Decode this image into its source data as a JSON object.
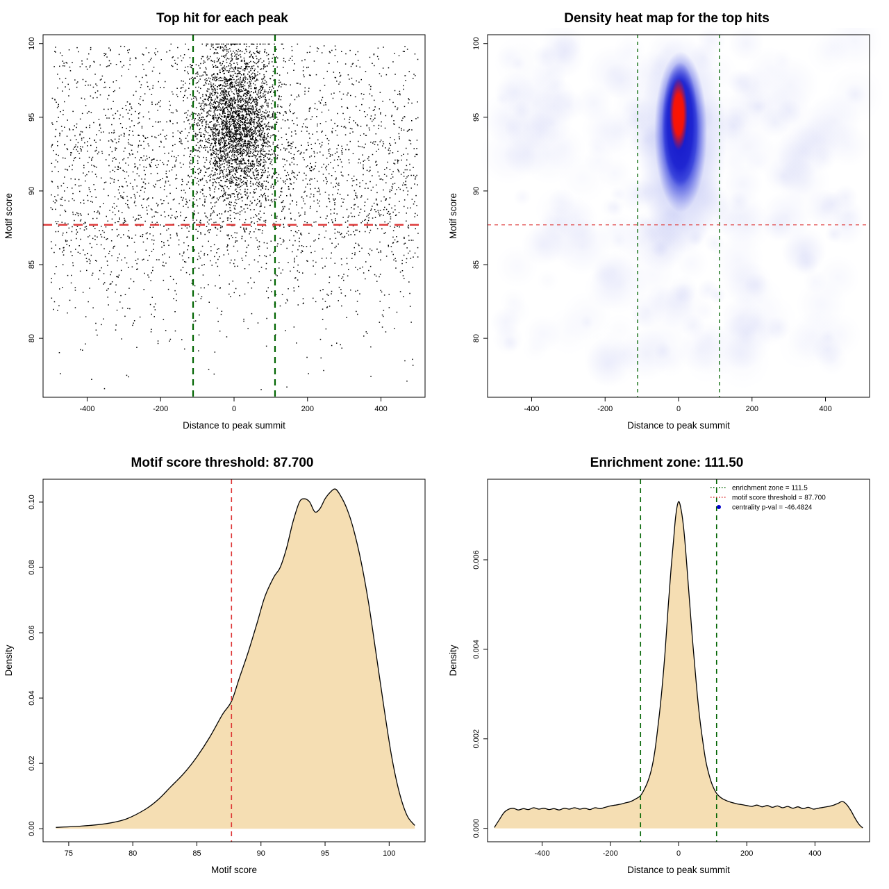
{
  "figure": {
    "background": "#ffffff"
  },
  "chart_data": [
    {
      "panel": "top-left",
      "type": "scatter",
      "title": "Top hit for each peak",
      "xlabel": "Distance to peak summit",
      "ylabel": "Motif score",
      "xlim": [
        -520,
        520
      ],
      "ylim": [
        76,
        100.6
      ],
      "xticks": [
        -400,
        -200,
        0,
        200,
        400
      ],
      "xtick_labels": [
        "-400",
        "-200",
        "0",
        "200",
        "400"
      ],
      "yticks": [
        80,
        85,
        90,
        95,
        100
      ],
      "ytick_labels": [
        "80",
        "85",
        "90",
        "95",
        "100"
      ],
      "point_color": "#000000",
      "n_points": 6000,
      "cluster": {
        "frac": 0.5,
        "x_mean": 5,
        "x_sd": 55,
        "y_mean": 94.6,
        "y_sd": 2.7,
        "y_cap": 100
      },
      "background_points": {
        "x_min": -500,
        "x_max": 500,
        "y_mean": 91,
        "y_sd": 5
      },
      "enrichment_zone": {
        "values": [
          -111.5,
          111.5
        ],
        "color": "#006400",
        "style": "dashed"
      },
      "score_threshold": {
        "value": 87.7,
        "color": "#dd3333",
        "style": "dashed"
      }
    },
    {
      "panel": "top-right",
      "type": "heatmap",
      "title": "Density heat map for the top hits",
      "xlabel": "Distance to peak summit",
      "ylabel": "Motif score",
      "xlim": [
        -520,
        520
      ],
      "ylim": [
        76,
        100.6
      ],
      "xticks": [
        -400,
        -200,
        0,
        200,
        400
      ],
      "xtick_labels": [
        "-400",
        "-200",
        "0",
        "200",
        "400"
      ],
      "yticks": [
        80,
        85,
        90,
        95,
        100
      ],
      "ytick_labels": [
        "80",
        "85",
        "90",
        "95",
        "100"
      ],
      "hotspot": {
        "x": 0,
        "y_center": 94.8,
        "y_span": [
          88,
          100
        ],
        "x_span": [
          -60,
          70
        ],
        "core_color": "#ff1400",
        "dense_color": "#1c22d0",
        "mid_color": "#2330d8",
        "glow_color": "#7d88ea",
        "noise_color": "#8891e8"
      },
      "enrichment_zone": {
        "values": [
          -111.5,
          111.5
        ],
        "color": "#006400",
        "style": "dashed"
      },
      "score_threshold": {
        "value": 87.7,
        "color": "#e04444",
        "style": "dashed"
      }
    },
    {
      "panel": "bottom-left",
      "type": "area",
      "title": "Motif score threshold: 87.700",
      "xlabel": "Motif score",
      "ylabel": "Density",
      "xlim": [
        73,
        102.8
      ],
      "ylim": [
        -0.004,
        0.107
      ],
      "xticks": [
        75,
        80,
        85,
        90,
        95,
        100
      ],
      "xtick_labels": [
        "75",
        "80",
        "85",
        "90",
        "95",
        "100"
      ],
      "yticks": [
        0,
        0.02,
        0.04,
        0.06,
        0.08,
        0.1
      ],
      "ytick_labels": [
        "0.00",
        "0.02",
        "0.04",
        "0.06",
        "0.08",
        "0.10"
      ],
      "fill": "#f5deb3",
      "line_color": "#000000",
      "threshold": {
        "value": 87.7,
        "color": "#dd3333",
        "style": "dashed"
      },
      "curve": {
        "x": [
          74,
          76,
          78,
          79.5,
          81,
          82,
          83,
          84,
          85,
          86,
          87,
          87.7,
          88.3,
          89,
          89.7,
          90.3,
          91,
          91.5,
          92,
          92.5,
          93,
          93.4,
          93.8,
          94.2,
          94.6,
          95,
          95.4,
          95.8,
          96.2,
          96.7,
          97.2,
          97.8,
          98.4,
          99,
          99.6,
          100.2,
          100.8,
          101.4,
          102
        ],
        "y": [
          0.0004,
          0.0008,
          0.0016,
          0.003,
          0.006,
          0.009,
          0.013,
          0.017,
          0.022,
          0.028,
          0.035,
          0.039,
          0.046,
          0.054,
          0.063,
          0.071,
          0.077,
          0.08,
          0.086,
          0.094,
          0.1,
          0.101,
          0.1,
          0.097,
          0.098,
          0.101,
          0.103,
          0.104,
          0.102,
          0.098,
          0.092,
          0.082,
          0.069,
          0.053,
          0.037,
          0.022,
          0.011,
          0.004,
          0.001
        ]
      }
    },
    {
      "panel": "bottom-right",
      "type": "area",
      "title": "Enrichment zone: 111.50",
      "xlabel": "Distance to peak summit",
      "ylabel": "Density",
      "xlim": [
        -560,
        560
      ],
      "ylim": [
        -0.0003,
        0.0078
      ],
      "xticks": [
        -400,
        -200,
        0,
        200,
        400
      ],
      "xtick_labels": [
        "-400",
        "-200",
        "0",
        "200",
        "400"
      ],
      "yticks": [
        0,
        0.002,
        0.004,
        0.006
      ],
      "ytick_labels": [
        "0.000",
        "0.002",
        "0.004",
        "0.006"
      ],
      "fill": "#f5deb3",
      "line_color": "#000000",
      "enrichment_zone": {
        "values": [
          -111.5,
          111.5
        ],
        "color": "#006400",
        "style": "dashed"
      },
      "legend": [
        {
          "label": "enrichment zone = 111.5",
          "color": "#006400",
          "marker": "line"
        },
        {
          "label": "motif score threshold = 87.700",
          "color": "#dd3333",
          "marker": "line"
        },
        {
          "label": "centrality p-val = -46.4824",
          "color": "#0000cc",
          "marker": "point"
        }
      ],
      "curve": {
        "x": [
          -540,
          -525,
          -512,
          -500,
          -485,
          -470,
          -455,
          -440,
          -425,
          -410,
          -395,
          -380,
          -365,
          -350,
          -335,
          -320,
          -305,
          -290,
          -275,
          -260,
          -245,
          -230,
          -215,
          -200,
          -185,
          -170,
          -155,
          -140,
          -125,
          -111.5,
          -100,
          -90,
          -80,
          -70,
          -60,
          -50,
          -40,
          -30,
          -22,
          -15,
          -8,
          0,
          8,
          15,
          22,
          30,
          40,
          50,
          60,
          70,
          80,
          90,
          100,
          111.5,
          125,
          140,
          155,
          170,
          185,
          200,
          215,
          230,
          245,
          260,
          275,
          290,
          305,
          320,
          335,
          350,
          365,
          380,
          395,
          410,
          425,
          440,
          455,
          468,
          480,
          492,
          505,
          518,
          530,
          540
        ],
        "y": [
          2e-05,
          0.0002,
          0.00035,
          0.00042,
          0.00045,
          0.00041,
          0.00044,
          0.00042,
          0.00046,
          0.00043,
          0.00045,
          0.00042,
          0.00044,
          0.00041,
          0.00045,
          0.00043,
          0.00046,
          0.00043,
          0.00045,
          0.00042,
          0.00046,
          0.00044,
          0.00047,
          0.0005,
          0.00052,
          0.00054,
          0.00057,
          0.0006,
          0.00066,
          0.00073,
          0.00088,
          0.00105,
          0.0013,
          0.0017,
          0.0023,
          0.003,
          0.0039,
          0.005,
          0.0058,
          0.0064,
          0.007,
          0.0073,
          0.0071,
          0.0067,
          0.0061,
          0.0053,
          0.0043,
          0.0034,
          0.0026,
          0.002,
          0.0015,
          0.00118,
          0.00095,
          0.00078,
          0.00068,
          0.00062,
          0.00058,
          0.00055,
          0.00053,
          0.00051,
          0.00049,
          0.00052,
          0.00048,
          0.00051,
          0.00047,
          0.0005,
          0.00046,
          0.00049,
          0.00045,
          0.00048,
          0.00044,
          0.00047,
          0.00043,
          0.00045,
          0.00047,
          0.00049,
          0.00052,
          0.00056,
          0.0006,
          0.00054,
          0.0004,
          0.00022,
          8e-05,
          1e-05
        ]
      }
    }
  ]
}
